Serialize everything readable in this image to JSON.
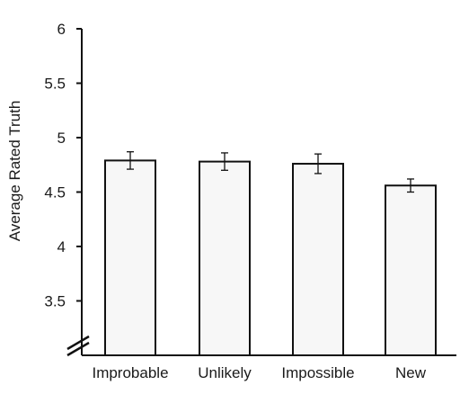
{
  "chart_data": {
    "type": "bar",
    "ylabel": "Average Rated Truth",
    "xlabel": "",
    "categories": [
      "Improbable",
      "Unlikely",
      "Impossible",
      "New"
    ],
    "values": [
      4.79,
      4.78,
      4.76,
      4.56
    ],
    "errors": [
      0.08,
      0.08,
      0.09,
      0.06
    ],
    "ylim": [
      3,
      6
    ],
    "yticks": [
      "3.5",
      "4",
      "4.5",
      "5",
      "5.5",
      "6"
    ],
    "axis_break": true,
    "grid": false,
    "bar_fill": "#f7f7f7",
    "bar_stroke": "#111111"
  }
}
